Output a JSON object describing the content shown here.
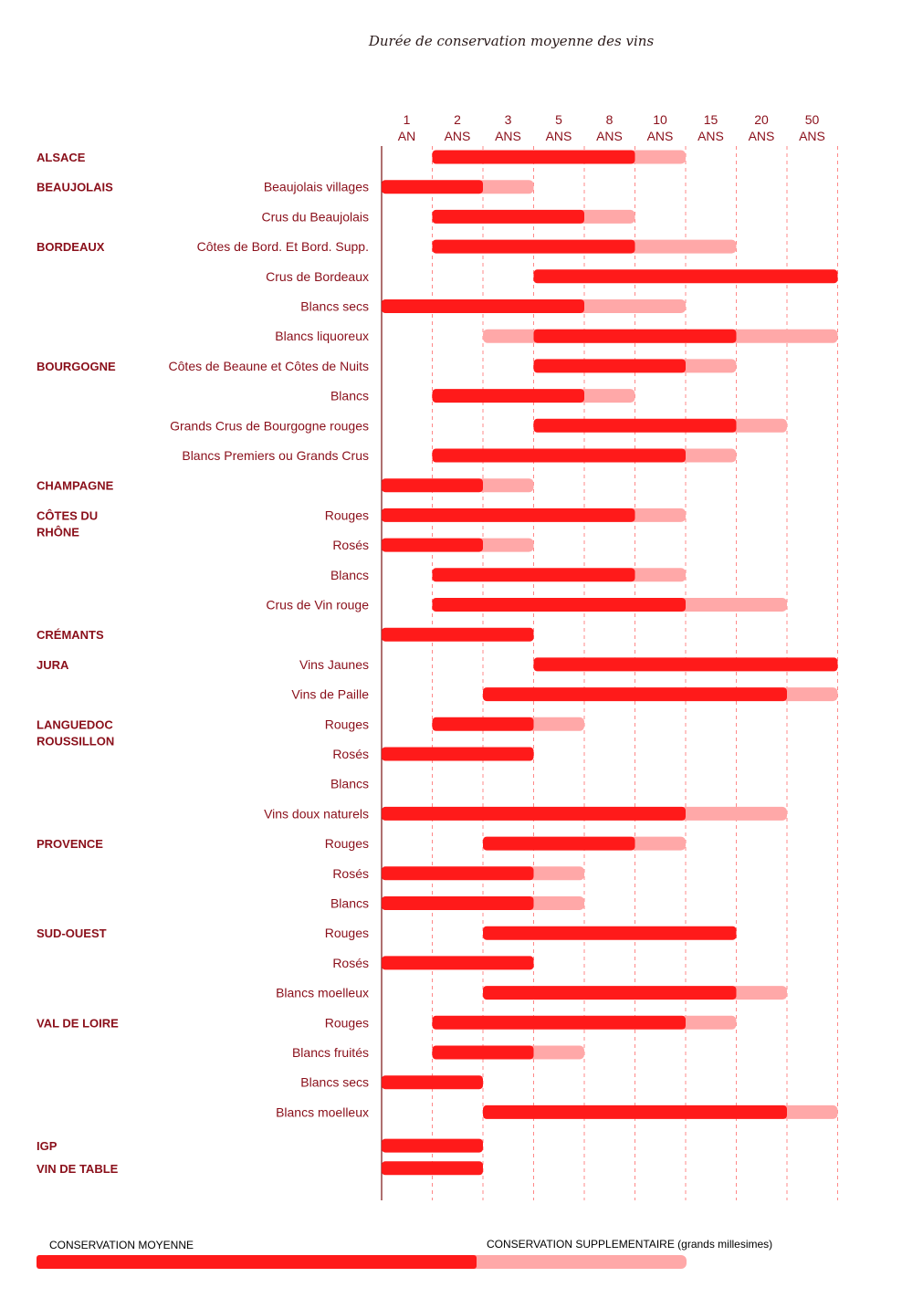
{
  "chart_data": {
    "type": "bar",
    "title": "Durée de conservation moyenne des vins",
    "ticks": [
      {
        "top": "1",
        "bottom": "AN"
      },
      {
        "top": "2",
        "bottom": "ANS"
      },
      {
        "top": "3",
        "bottom": "ANS"
      },
      {
        "top": "5",
        "bottom": "ANS"
      },
      {
        "top": "8",
        "bottom": "ANS"
      },
      {
        "top": "10",
        "bottom": "ANS"
      },
      {
        "top": "15",
        "bottom": "ANS"
      },
      {
        "top": "20",
        "bottom": "ANS"
      },
      {
        "top": "50",
        "bottom": "ANS"
      }
    ],
    "series_names": [
      "CONSERVATION MOYENNE",
      "CONSERVATION SUPPLEMENTAIRE (grands millesimes)"
    ],
    "colors": {
      "main": "#ff1a1a",
      "extra": "#ffa8a8",
      "text": "#8a0f1a",
      "axis": "#7a1010"
    },
    "rows": [
      {
        "region": [
          "ALSACE"
        ],
        "label": "",
        "main": [
          2,
          10
        ],
        "extra": 15
      },
      {
        "region": [
          "BEAUJOLAIS"
        ],
        "label": "Beaujolais villages",
        "main": [
          0,
          3
        ],
        "extra": 5
      },
      {
        "region": [],
        "label": "Crus du Beaujolais",
        "main": [
          2,
          8
        ],
        "extra": 10
      },
      {
        "region": [
          "BORDEAUX"
        ],
        "label": "Côtes de Bord. Et Bord. Supp.",
        "main": [
          2,
          10
        ],
        "extra": 20
      },
      {
        "region": [],
        "label": "Crus de Bordeaux",
        "main": [
          5,
          50
        ],
        "extra": null
      },
      {
        "region": [],
        "label": "Blancs secs",
        "main": [
          0,
          8
        ],
        "extra": 15
      },
      {
        "region": [],
        "label": "Blancs liquoreux",
        "main": [
          5,
          20
        ],
        "extra": 50,
        "extra_start": 3
      },
      {
        "region": [
          "BOURGOGNE"
        ],
        "label": "Côtes de Beaune et Côtes de Nuits",
        "main": [
          5,
          15
        ],
        "extra": 20
      },
      {
        "region": [],
        "label": "Blancs",
        "main": [
          2,
          8
        ],
        "extra": 10
      },
      {
        "region": [],
        "label": "Grands Crus de Bourgogne rouges",
        "main": [
          5,
          20
        ],
        "extra": 30
      },
      {
        "region": [],
        "label": "Blancs Premiers ou Grands Crus",
        "main": [
          2,
          15
        ],
        "extra": 20
      },
      {
        "region": [
          "CHAMPAGNE"
        ],
        "label": "",
        "main": [
          0,
          3
        ],
        "extra": 5
      },
      {
        "region": [
          "CÔTES DU",
          "RHÔNE"
        ],
        "label": "Rouges",
        "main": [
          0,
          10
        ],
        "extra": 15
      },
      {
        "region": [],
        "label": "Rosés",
        "main": [
          0,
          3
        ],
        "extra": 5
      },
      {
        "region": [],
        "label": "Blancs",
        "main": [
          2,
          10
        ],
        "extra": 15
      },
      {
        "region": [],
        "label": "Crus de Vin rouge",
        "main": [
          2,
          15
        ],
        "extra": 30
      },
      {
        "region": [
          "CRÉMANTS"
        ],
        "label": "",
        "main": [
          0,
          5
        ],
        "extra": null
      },
      {
        "region": [
          "JURA"
        ],
        "label": "Vins Jaunes",
        "main": [
          5,
          50
        ],
        "extra": null
      },
      {
        "region": [],
        "label": "Vins de Paille",
        "main": [
          3,
          30
        ],
        "extra": 50
      },
      {
        "region": [
          "LANGUEDOC",
          "ROUSSILLON"
        ],
        "label": "Rouges",
        "main": [
          2,
          5
        ],
        "extra": 8
      },
      {
        "region": [],
        "label": "Rosés",
        "main": [
          0,
          5
        ],
        "extra": null
      },
      {
        "region": [],
        "label": "Blancs",
        "main": null,
        "extra": null
      },
      {
        "region": [],
        "label": "Vins doux naturels",
        "main": [
          0,
          15
        ],
        "extra": 30
      },
      {
        "region": [
          "PROVENCE"
        ],
        "label": "Rouges",
        "main": [
          3,
          10
        ],
        "extra": 15
      },
      {
        "region": [],
        "label": "Rosés",
        "main": [
          0,
          5
        ],
        "extra": 8
      },
      {
        "region": [],
        "label": "Blancs",
        "main": [
          0,
          5
        ],
        "extra": 8
      },
      {
        "region": [
          "SUD-OUEST"
        ],
        "label": "Rouges",
        "main": [
          3,
          20
        ],
        "extra": null
      },
      {
        "region": [],
        "label": "Rosés",
        "main": [
          0,
          5
        ],
        "extra": null
      },
      {
        "region": [],
        "label": "Blancs moelleux",
        "main": [
          3,
          20
        ],
        "extra": 30
      },
      {
        "region": [
          "VAL DE LOIRE"
        ],
        "label": "Rouges",
        "main": [
          2,
          15
        ],
        "extra": 20
      },
      {
        "region": [],
        "label": "Blancs fruités",
        "main": [
          2,
          5
        ],
        "extra": 8
      },
      {
        "region": [],
        "label": "Blancs secs",
        "main": [
          0,
          3
        ],
        "extra": null
      },
      {
        "region": [],
        "label": "Blancs moelleux",
        "main": [
          3,
          30
        ],
        "extra": 50
      },
      {
        "region": [
          "IGP"
        ],
        "label": "",
        "main": [
          0,
          3
        ],
        "extra": null
      },
      {
        "region": [
          "VIN DE TABLE"
        ],
        "label": "",
        "main": [
          0,
          3
        ],
        "extra": null
      }
    ]
  },
  "legend": {
    "main_label": "CONSERVATION MOYENNE",
    "extra_label": "CONSERVATION SUPPLEMENTAIRE (grands millesimes)"
  }
}
